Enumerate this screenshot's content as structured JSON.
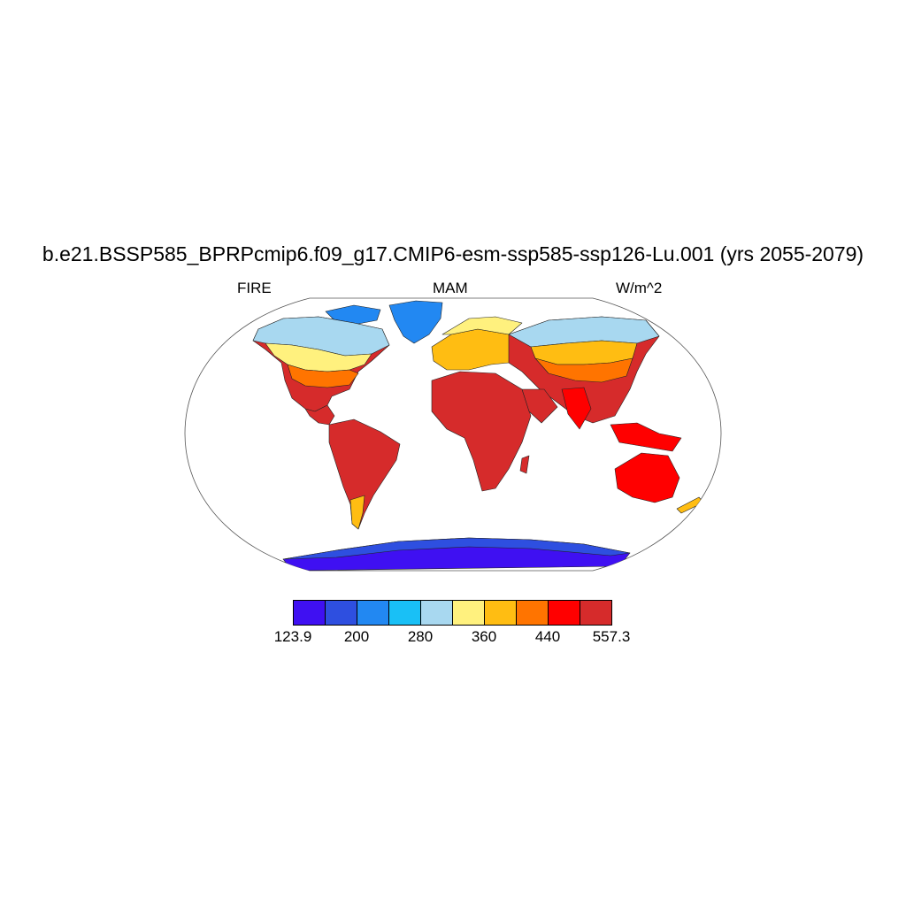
{
  "title": "b.e21.BSSP585_BPRPcmip6.f09_g17.CMIP6-esm-ssp585-ssp126-Lu.001 (yrs 2055-2079)",
  "left_label": "FIRE",
  "center_label": "MAM",
  "right_label": "W/m^2",
  "colorbar": {
    "colors": [
      "#3f10f2",
      "#2e4fe0",
      "#2288f2",
      "#19c0f6",
      "#a8d8f0",
      "#fff17e",
      "#ffbd12",
      "#ff7400",
      "#ff0000",
      "#d62b2b"
    ],
    "labels": [
      "123.9",
      "200",
      "280",
      "360",
      "440",
      "557.3"
    ]
  }
}
